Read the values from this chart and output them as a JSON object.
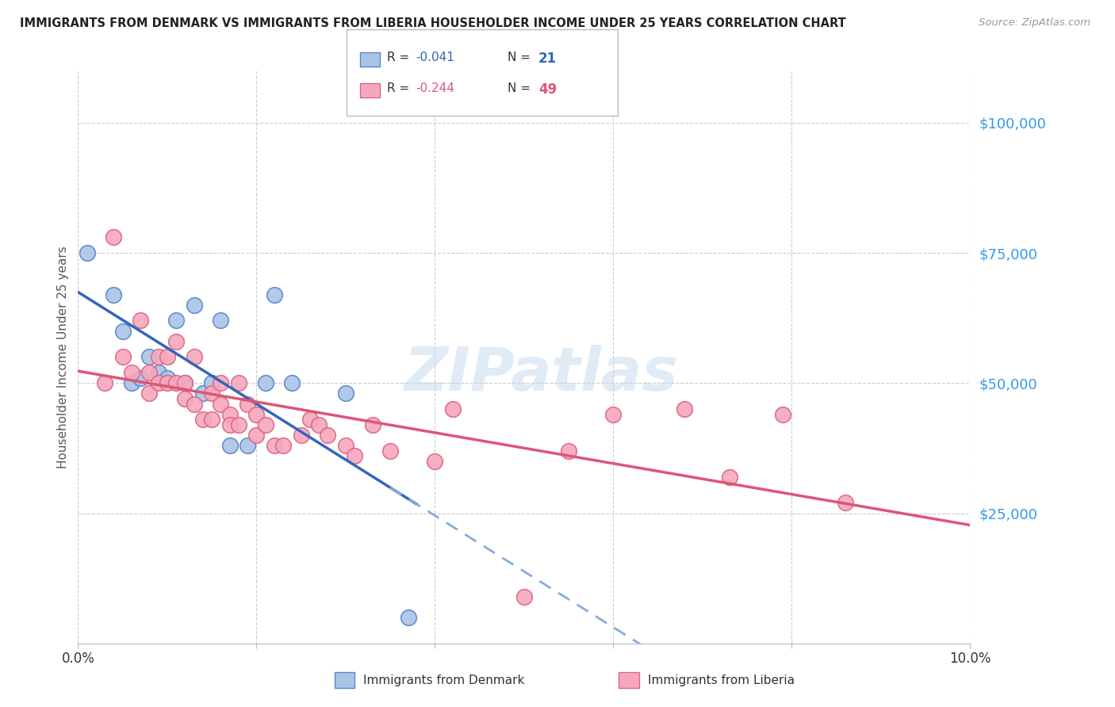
{
  "title": "IMMIGRANTS FROM DENMARK VS IMMIGRANTS FROM LIBERIA HOUSEHOLDER INCOME UNDER 25 YEARS CORRELATION CHART",
  "source": "Source: ZipAtlas.com",
  "ylabel": "Householder Income Under 25 years",
  "xlim": [
    0.0,
    0.1
  ],
  "ylim": [
    0,
    110000
  ],
  "yticks": [
    0,
    25000,
    50000,
    75000,
    100000
  ],
  "ytick_labels": [
    "",
    "$25,000",
    "$50,000",
    "$75,000",
    "$100,000"
  ],
  "xticks": [
    0.0,
    0.02,
    0.04,
    0.06,
    0.08,
    0.1
  ],
  "xtick_labels": [
    "0.0%",
    "",
    "",
    "",
    "",
    "10.0%"
  ],
  "denmark_color": "#aac4e8",
  "liberia_color": "#f5a8bc",
  "denmark_edge": "#5588cc",
  "liberia_edge": "#dd6688",
  "trend_denmark_solid_color": "#3366bb",
  "trend_denmark_dash_color": "#88aadd",
  "trend_liberia_color": "#dd5577",
  "legend_R_denmark": "-0.041",
  "legend_N_denmark": "21",
  "legend_R_liberia": "-0.244",
  "legend_N_liberia": "49",
  "watermark": "ZIPatlas",
  "background_color": "#ffffff",
  "grid_color": "#cccccc",
  "denmark_x": [
    0.001,
    0.004,
    0.005,
    0.006,
    0.007,
    0.008,
    0.009,
    0.01,
    0.011,
    0.012,
    0.013,
    0.014,
    0.015,
    0.016,
    0.017,
    0.019,
    0.021,
    0.022,
    0.024,
    0.03,
    0.037
  ],
  "denmark_y": [
    75000,
    67000,
    60000,
    50000,
    51000,
    55000,
    52000,
    51000,
    62000,
    50000,
    65000,
    48000,
    50000,
    62000,
    38000,
    38000,
    50000,
    67000,
    50000,
    48000,
    5000
  ],
  "liberia_x": [
    0.003,
    0.004,
    0.005,
    0.006,
    0.007,
    0.008,
    0.008,
    0.009,
    0.009,
    0.01,
    0.01,
    0.011,
    0.011,
    0.012,
    0.012,
    0.013,
    0.013,
    0.014,
    0.015,
    0.015,
    0.016,
    0.016,
    0.017,
    0.017,
    0.018,
    0.018,
    0.019,
    0.02,
    0.02,
    0.021,
    0.022,
    0.023,
    0.025,
    0.026,
    0.027,
    0.028,
    0.03,
    0.031,
    0.033,
    0.035,
    0.04,
    0.042,
    0.05,
    0.055,
    0.06,
    0.068,
    0.073,
    0.079,
    0.086
  ],
  "liberia_y": [
    50000,
    78000,
    55000,
    52000,
    62000,
    52000,
    48000,
    55000,
    50000,
    55000,
    50000,
    58000,
    50000,
    50000,
    47000,
    46000,
    55000,
    43000,
    48000,
    43000,
    50000,
    46000,
    44000,
    42000,
    50000,
    42000,
    46000,
    40000,
    44000,
    42000,
    38000,
    38000,
    40000,
    43000,
    42000,
    40000,
    38000,
    36000,
    42000,
    37000,
    35000,
    45000,
    9000,
    37000,
    44000,
    45000,
    32000,
    44000,
    27000
  ]
}
